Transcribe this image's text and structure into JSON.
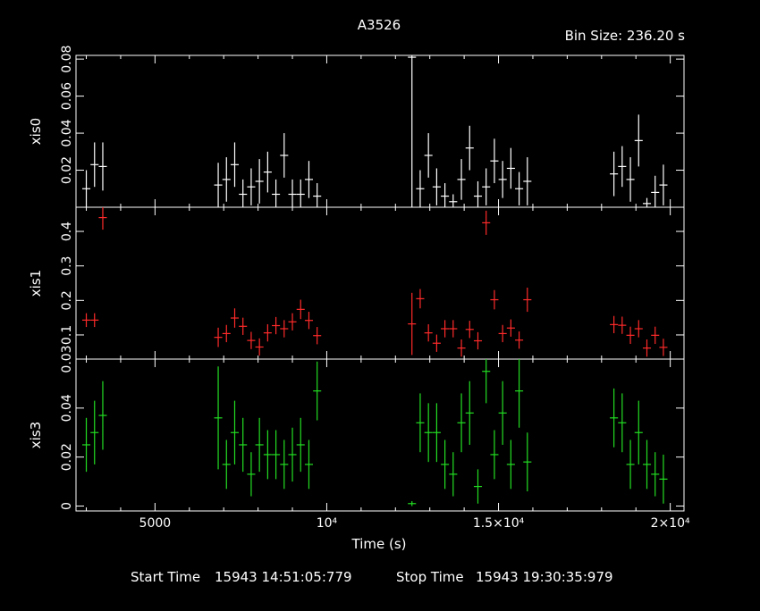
{
  "title": "A3526",
  "bin_size": "Bin Size: 236.20 s",
  "footer": {
    "start_label": "Start Time",
    "start_value": "15943 14:51:05:779",
    "stop_label": "Stop Time",
    "stop_value": "15943 19:30:35:979"
  },
  "colors": {
    "xis0": "#ffffff",
    "xis1": "#ff2a2a",
    "xis3": "#22dd22",
    "frame": "#ffffff"
  },
  "chart_data": {
    "type": "scatter",
    "x_axis": {
      "label": "Time (s)",
      "range": [
        2700,
        20400
      ],
      "ticks": [
        {
          "value": 5000,
          "label": "5000"
        },
        {
          "value": 10000,
          "label": "10⁴"
        },
        {
          "value": 15000,
          "label": "1.5×10⁴"
        },
        {
          "value": 20000,
          "label": "2×10⁴"
        }
      ]
    },
    "grid": false,
    "legend": "none",
    "panels": [
      {
        "name": "xis0",
        "ylabel": "xis0",
        "ylim": [
          0.0,
          0.082
        ],
        "yticks": [
          {
            "value": 0.02,
            "label": "0.02"
          },
          {
            "value": 0.04,
            "label": "0.04"
          },
          {
            "value": 0.06,
            "label": "0.06"
          },
          {
            "value": 0.08,
            "label": "0.08"
          }
        ],
        "points": [
          {
            "x": 3000,
            "y": 0.01,
            "e": 0.01
          },
          {
            "x": 3240,
            "y": 0.023,
            "e": 0.012
          },
          {
            "x": 3480,
            "y": 0.022,
            "e": 0.013
          },
          {
            "x": 6840,
            "y": 0.012,
            "e": 0.012
          },
          {
            "x": 7080,
            "y": 0.015,
            "e": 0.012
          },
          {
            "x": 7320,
            "y": 0.023,
            "e": 0.012
          },
          {
            "x": 7560,
            "y": 0.007,
            "e": 0.008
          },
          {
            "x": 7800,
            "y": 0.011,
            "e": 0.01
          },
          {
            "x": 8040,
            "y": 0.014,
            "e": 0.012
          },
          {
            "x": 8280,
            "y": 0.019,
            "e": 0.011
          },
          {
            "x": 8520,
            "y": 0.007,
            "e": 0.008
          },
          {
            "x": 8760,
            "y": 0.028,
            "e": 0.012
          },
          {
            "x": 9000,
            "y": 0.007,
            "e": 0.008
          },
          {
            "x": 9240,
            "y": 0.007,
            "e": 0.008
          },
          {
            "x": 9480,
            "y": 0.015,
            "e": 0.01
          },
          {
            "x": 9720,
            "y": 0.006,
            "e": 0.007
          },
          {
            "x": 12480,
            "y": 0.081,
            "e": 0.081
          },
          {
            "x": 12720,
            "y": 0.01,
            "e": 0.01
          },
          {
            "x": 12960,
            "y": 0.028,
            "e": 0.012
          },
          {
            "x": 13200,
            "y": 0.011,
            "e": 0.01
          },
          {
            "x": 13440,
            "y": 0.006,
            "e": 0.007
          },
          {
            "x": 13680,
            "y": 0.003,
            "e": 0.004
          },
          {
            "x": 13920,
            "y": 0.015,
            "e": 0.011
          },
          {
            "x": 14160,
            "y": 0.032,
            "e": 0.012
          },
          {
            "x": 14400,
            "y": 0.006,
            "e": 0.008
          },
          {
            "x": 14640,
            "y": 0.011,
            "e": 0.01
          },
          {
            "x": 14880,
            "y": 0.025,
            "e": 0.012
          },
          {
            "x": 15120,
            "y": 0.015,
            "e": 0.01
          },
          {
            "x": 15360,
            "y": 0.021,
            "e": 0.011
          },
          {
            "x": 15600,
            "y": 0.01,
            "e": 0.009
          },
          {
            "x": 15840,
            "y": 0.014,
            "e": 0.013
          },
          {
            "x": 18360,
            "y": 0.018,
            "e": 0.012
          },
          {
            "x": 18600,
            "y": 0.022,
            "e": 0.011
          },
          {
            "x": 18840,
            "y": 0.015,
            "e": 0.012
          },
          {
            "x": 19080,
            "y": 0.036,
            "e": 0.014
          },
          {
            "x": 19320,
            "y": 0.002,
            "e": 0.003
          },
          {
            "x": 19560,
            "y": 0.008,
            "e": 0.009
          },
          {
            "x": 19800,
            "y": 0.012,
            "e": 0.011
          }
        ]
      },
      {
        "name": "xis1",
        "ylabel": "xis1",
        "ylim": [
          0.03,
          0.47
        ],
        "yticks": [
          {
            "value": 0.03,
            "label": "0.03"
          },
          {
            "value": 0.1,
            "label": "0.1"
          },
          {
            "value": 0.2,
            "label": "0.2"
          },
          {
            "value": 0.3,
            "label": "0.3"
          },
          {
            "value": 0.4,
            "label": "0.4"
          }
        ],
        "points": [
          {
            "x": 3000,
            "y": 0.143,
            "e": 0.02
          },
          {
            "x": 3240,
            "y": 0.143,
            "e": 0.02
          },
          {
            "x": 3480,
            "y": 0.44,
            "e": 0.035
          },
          {
            "x": 6840,
            "y": 0.093,
            "e": 0.028
          },
          {
            "x": 7080,
            "y": 0.104,
            "e": 0.025
          },
          {
            "x": 7320,
            "y": 0.149,
            "e": 0.028
          },
          {
            "x": 7560,
            "y": 0.125,
            "e": 0.025
          },
          {
            "x": 7800,
            "y": 0.084,
            "e": 0.025
          },
          {
            "x": 8040,
            "y": 0.065,
            "e": 0.025
          },
          {
            "x": 8280,
            "y": 0.106,
            "e": 0.025
          },
          {
            "x": 8520,
            "y": 0.127,
            "e": 0.025
          },
          {
            "x": 8760,
            "y": 0.118,
            "e": 0.025
          },
          {
            "x": 9000,
            "y": 0.138,
            "e": 0.025
          },
          {
            "x": 9240,
            "y": 0.174,
            "e": 0.028
          },
          {
            "x": 9480,
            "y": 0.142,
            "e": 0.025
          },
          {
            "x": 9720,
            "y": 0.098,
            "e": 0.025
          },
          {
            "x": 12480,
            "y": 0.132,
            "e": 0.09
          },
          {
            "x": 12720,
            "y": 0.205,
            "e": 0.028
          },
          {
            "x": 12960,
            "y": 0.106,
            "e": 0.025
          },
          {
            "x": 13200,
            "y": 0.076,
            "e": 0.025
          },
          {
            "x": 13440,
            "y": 0.118,
            "e": 0.025
          },
          {
            "x": 13680,
            "y": 0.118,
            "e": 0.025
          },
          {
            "x": 13920,
            "y": 0.062,
            "e": 0.025
          },
          {
            "x": 14160,
            "y": 0.116,
            "e": 0.025
          },
          {
            "x": 14400,
            "y": 0.083,
            "e": 0.025
          },
          {
            "x": 14640,
            "y": 0.425,
            "e": 0.035
          },
          {
            "x": 14880,
            "y": 0.202,
            "e": 0.028
          },
          {
            "x": 15120,
            "y": 0.104,
            "e": 0.025
          },
          {
            "x": 15360,
            "y": 0.12,
            "e": 0.025
          },
          {
            "x": 15600,
            "y": 0.085,
            "e": 0.025
          },
          {
            "x": 15840,
            "y": 0.202,
            "e": 0.035
          },
          {
            "x": 18360,
            "y": 0.13,
            "e": 0.025
          },
          {
            "x": 18600,
            "y": 0.128,
            "e": 0.025
          },
          {
            "x": 18840,
            "y": 0.099,
            "e": 0.025
          },
          {
            "x": 19080,
            "y": 0.118,
            "e": 0.025
          },
          {
            "x": 19320,
            "y": 0.062,
            "e": 0.025
          },
          {
            "x": 19560,
            "y": 0.099,
            "e": 0.025
          },
          {
            "x": 19800,
            "y": 0.064,
            "e": 0.025
          }
        ]
      },
      {
        "name": "xis3",
        "ylabel": "xis3",
        "ylim": [
          -0.002,
          0.06
        ],
        "yticks": [
          {
            "value": 0.0,
            "label": "0"
          },
          {
            "value": 0.02,
            "label": "0.02"
          },
          {
            "value": 0.04,
            "label": "0.04"
          }
        ],
        "points": [
          {
            "x": 3000,
            "y": 0.025,
            "e": 0.011
          },
          {
            "x": 3240,
            "y": 0.03,
            "e": 0.013
          },
          {
            "x": 3480,
            "y": 0.037,
            "e": 0.014
          },
          {
            "x": 6840,
            "y": 0.036,
            "e": 0.021
          },
          {
            "x": 7080,
            "y": 0.017,
            "e": 0.01
          },
          {
            "x": 7320,
            "y": 0.03,
            "e": 0.013
          },
          {
            "x": 7560,
            "y": 0.025,
            "e": 0.011
          },
          {
            "x": 7800,
            "y": 0.013,
            "e": 0.009
          },
          {
            "x": 8040,
            "y": 0.025,
            "e": 0.011
          },
          {
            "x": 8280,
            "y": 0.021,
            "e": 0.01
          },
          {
            "x": 8520,
            "y": 0.021,
            "e": 0.01
          },
          {
            "x": 8760,
            "y": 0.017,
            "e": 0.01
          },
          {
            "x": 9000,
            "y": 0.021,
            "e": 0.011
          },
          {
            "x": 9240,
            "y": 0.025,
            "e": 0.011
          },
          {
            "x": 9480,
            "y": 0.017,
            "e": 0.01
          },
          {
            "x": 9720,
            "y": 0.047,
            "e": 0.012
          },
          {
            "x": 12480,
            "y": 0.001,
            "e": 0.001
          },
          {
            "x": 12720,
            "y": 0.034,
            "e": 0.012
          },
          {
            "x": 12960,
            "y": 0.03,
            "e": 0.012
          },
          {
            "x": 13200,
            "y": 0.03,
            "e": 0.012
          },
          {
            "x": 13440,
            "y": 0.017,
            "e": 0.01
          },
          {
            "x": 13680,
            "y": 0.013,
            "e": 0.009
          },
          {
            "x": 13920,
            "y": 0.034,
            "e": 0.012
          },
          {
            "x": 14160,
            "y": 0.038,
            "e": 0.013
          },
          {
            "x": 14400,
            "y": 0.008,
            "e": 0.007
          },
          {
            "x": 14640,
            "y": 0.055,
            "e": 0.013
          },
          {
            "x": 14880,
            "y": 0.021,
            "e": 0.01
          },
          {
            "x": 15120,
            "y": 0.038,
            "e": 0.013
          },
          {
            "x": 15360,
            "y": 0.017,
            "e": 0.01
          },
          {
            "x": 15600,
            "y": 0.047,
            "e": 0.015
          },
          {
            "x": 15840,
            "y": 0.018,
            "e": 0.012
          },
          {
            "x": 18360,
            "y": 0.036,
            "e": 0.012
          },
          {
            "x": 18600,
            "y": 0.034,
            "e": 0.012
          },
          {
            "x": 18840,
            "y": 0.017,
            "e": 0.01
          },
          {
            "x": 19080,
            "y": 0.03,
            "e": 0.013
          },
          {
            "x": 19320,
            "y": 0.017,
            "e": 0.01
          },
          {
            "x": 19560,
            "y": 0.013,
            "e": 0.009
          },
          {
            "x": 19800,
            "y": 0.011,
            "e": 0.01
          }
        ]
      }
    ]
  }
}
